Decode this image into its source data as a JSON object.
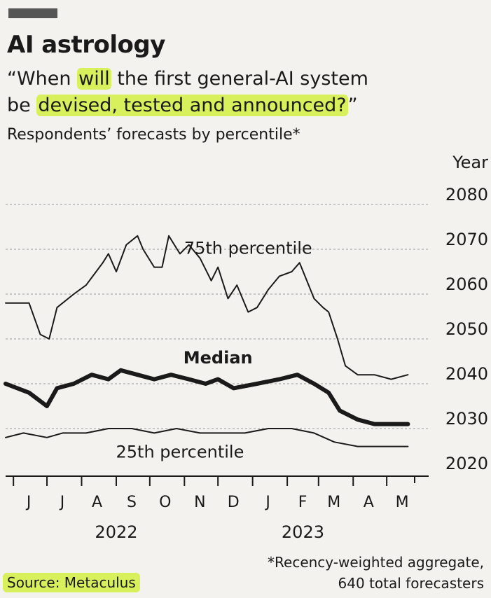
{
  "header": {
    "title": "AI astrology",
    "subtitle_line1_pre": "“When ",
    "subtitle_line1_hl": "will",
    "subtitle_line1_post": " the first general-AI system",
    "subtitle_line2_pre": "be ",
    "subtitle_line2_hl": "devised, tested and announced?",
    "subtitle_line2_post": "”",
    "note": "Respondents’ forecasts by percentile*"
  },
  "footer": {
    "source": "Source: Metaculus",
    "footnote_line1": "*Recency-weighted aggregate,",
    "footnote_line2": "640 total forecasters"
  },
  "colors": {
    "line": "#1a1a1a",
    "highlight": "#d7f05c",
    "grid": "#9a9a9a"
  },
  "chart_data": {
    "type": "line",
    "ylabel": "Year",
    "ylim": [
      2020,
      2080
    ],
    "yticks": [
      2020,
      2030,
      2040,
      2050,
      2060,
      2070,
      2080
    ],
    "xlim": [
      "2022-05-25",
      "2023-05-31"
    ],
    "month_ticks": [
      {
        "label": "J",
        "date": "2022-06-01"
      },
      {
        "label": "J",
        "date": "2022-07-01"
      },
      {
        "label": "A",
        "date": "2022-08-01"
      },
      {
        "label": "S",
        "date": "2022-09-01"
      },
      {
        "label": "O",
        "date": "2022-10-01"
      },
      {
        "label": "N",
        "date": "2022-11-01"
      },
      {
        "label": "D",
        "date": "2022-12-01"
      },
      {
        "label": "J",
        "date": "2023-01-01"
      },
      {
        "label": "F",
        "date": "2023-02-01"
      },
      {
        "label": "M",
        "date": "2023-03-01"
      },
      {
        "label": "A",
        "date": "2023-04-01"
      },
      {
        "label": "M",
        "date": "2023-05-01"
      }
    ],
    "year_labels": [
      {
        "label": "2022",
        "date": "2022-09-01"
      },
      {
        "label": "2023",
        "date": "2023-02-15"
      }
    ],
    "grid": true,
    "series": [
      {
        "name": "75th percentile",
        "width": 2,
        "points": [
          [
            "2022-05-25",
            2058
          ],
          [
            "2022-06-15",
            2058
          ],
          [
            "2022-06-25",
            2051
          ],
          [
            "2022-07-03",
            2050
          ],
          [
            "2022-07-10",
            2057
          ],
          [
            "2022-07-25",
            2060
          ],
          [
            "2022-08-05",
            2062
          ],
          [
            "2022-08-20",
            2067
          ],
          [
            "2022-08-25",
            2069
          ],
          [
            "2022-09-01",
            2065
          ],
          [
            "2022-09-10",
            2071
          ],
          [
            "2022-09-20",
            2073
          ],
          [
            "2022-09-25",
            2070
          ],
          [
            "2022-10-05",
            2066
          ],
          [
            "2022-10-12",
            2066
          ],
          [
            "2022-10-18",
            2073
          ],
          [
            "2022-10-28",
            2069
          ],
          [
            "2022-11-05",
            2071
          ],
          [
            "2022-11-15",
            2068
          ],
          [
            "2022-11-25",
            2063
          ],
          [
            "2022-12-01",
            2066
          ],
          [
            "2022-12-10",
            2059
          ],
          [
            "2022-12-18",
            2062
          ],
          [
            "2022-12-28",
            2056
          ],
          [
            "2023-01-05",
            2057
          ],
          [
            "2023-01-15",
            2061
          ],
          [
            "2023-01-25",
            2064
          ],
          [
            "2023-02-05",
            2065
          ],
          [
            "2023-02-12",
            2067
          ],
          [
            "2023-02-25",
            2059
          ],
          [
            "2023-03-05",
            2057
          ],
          [
            "2023-03-10",
            2056
          ],
          [
            "2023-03-18",
            2050
          ],
          [
            "2023-03-25",
            2044
          ],
          [
            "2023-04-05",
            2042
          ],
          [
            "2023-04-20",
            2042
          ],
          [
            "2023-05-05",
            2041
          ],
          [
            "2023-05-20",
            2042
          ]
        ]
      },
      {
        "name": "Median",
        "width": 6,
        "points": [
          [
            "2022-05-25",
            2040
          ],
          [
            "2022-06-15",
            2038
          ],
          [
            "2022-07-01",
            2035
          ],
          [
            "2022-07-10",
            2039
          ],
          [
            "2022-07-25",
            2040
          ],
          [
            "2022-08-10",
            2042
          ],
          [
            "2022-08-25",
            2041
          ],
          [
            "2022-09-05",
            2043
          ],
          [
            "2022-09-20",
            2042
          ],
          [
            "2022-10-05",
            2041
          ],
          [
            "2022-10-20",
            2042
          ],
          [
            "2022-11-05",
            2041
          ],
          [
            "2022-11-20",
            2040
          ],
          [
            "2022-12-01",
            2041
          ],
          [
            "2022-12-15",
            2039
          ],
          [
            "2023-01-05",
            2040
          ],
          [
            "2023-01-25",
            2041
          ],
          [
            "2023-02-10",
            2042
          ],
          [
            "2023-02-25",
            2040
          ],
          [
            "2023-03-10",
            2038
          ],
          [
            "2023-03-20",
            2034
          ],
          [
            "2023-04-05",
            2032
          ],
          [
            "2023-04-20",
            2031
          ],
          [
            "2023-05-05",
            2031
          ],
          [
            "2023-05-20",
            2031
          ]
        ]
      },
      {
        "name": "25th percentile",
        "width": 2,
        "points": [
          [
            "2022-05-25",
            2028
          ],
          [
            "2022-06-10",
            2029
          ],
          [
            "2022-07-01",
            2028
          ],
          [
            "2022-07-15",
            2029
          ],
          [
            "2022-08-05",
            2029
          ],
          [
            "2022-08-25",
            2030
          ],
          [
            "2022-09-15",
            2030
          ],
          [
            "2022-10-05",
            2029
          ],
          [
            "2022-10-25",
            2030
          ],
          [
            "2022-11-15",
            2029
          ],
          [
            "2022-12-05",
            2029
          ],
          [
            "2022-12-25",
            2029
          ],
          [
            "2023-01-15",
            2030
          ],
          [
            "2023-02-05",
            2030
          ],
          [
            "2023-02-25",
            2029
          ],
          [
            "2023-03-15",
            2027
          ],
          [
            "2023-04-05",
            2026
          ],
          [
            "2023-04-25",
            2026
          ],
          [
            "2023-05-20",
            2026
          ]
        ]
      }
    ],
    "annotations": [
      {
        "text": "75th percentile",
        "date": "2022-12-28",
        "y": 2069,
        "weight": "normal",
        "anchor": "middle"
      },
      {
        "text": "Median",
        "date": "2022-12-01",
        "y": 2044.5,
        "weight": "bold",
        "anchor": "middle"
      },
      {
        "text": "25th percentile",
        "date": "2022-10-28",
        "y": 2023.5,
        "weight": "normal",
        "anchor": "middle"
      }
    ]
  }
}
